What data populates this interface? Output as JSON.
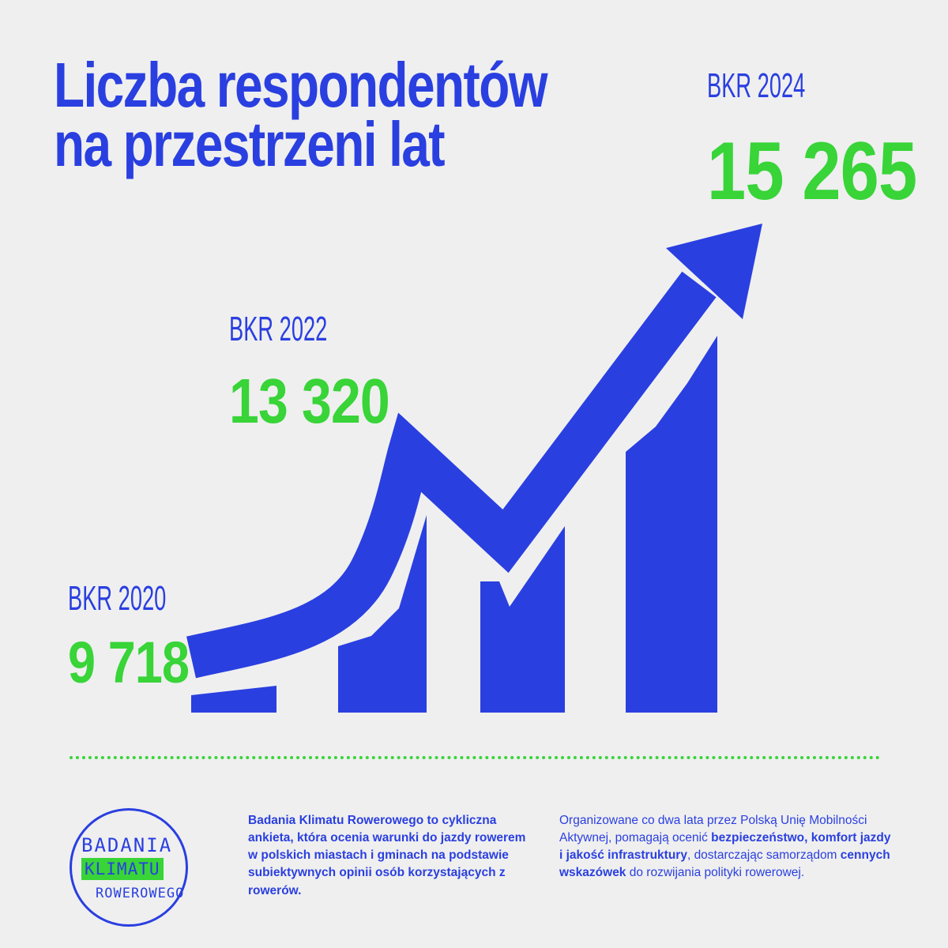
{
  "title": {
    "line1": "Liczba respondentów",
    "line2": "na przestrzeni lat"
  },
  "colors": {
    "blue": "#2a3fe0",
    "green": "#38d438",
    "background": "#efefef"
  },
  "chart_data": {
    "type": "bar",
    "title": "Liczba respondentów na przestrzeni lat",
    "categories": [
      "BKR 2020",
      "BKR 2022",
      "BKR 2024"
    ],
    "values": [
      9718,
      13320,
      15265
    ],
    "value_labels": [
      "9 718",
      "13 320",
      "15 265"
    ],
    "trend_arrow": true,
    "grid": false
  },
  "footer": {
    "logo": {
      "line1": "BADANIA",
      "line2": "KLIMATU",
      "line3": "ROWEROWEGO"
    },
    "description_left": "Badania Klimatu Rowerowego to cykliczna ankieta, która ocenia warunki do jazdy rowerem w polskich miastach i gminach na podstawie subiektywnych opinii osób korzystających z rowerów.",
    "description_right": {
      "p1": "Organizowane co dwa lata przez Polską Unię Mobilności Aktywnej, pomagają ocenić ",
      "b1": "bezpieczeństwo, komfort jazdy i jakość infrastruktury",
      "p2": ", dostarczając samorządom ",
      "b2": "cennych wskazówek",
      "p3": " do rozwijania polityki rowerowej."
    }
  }
}
